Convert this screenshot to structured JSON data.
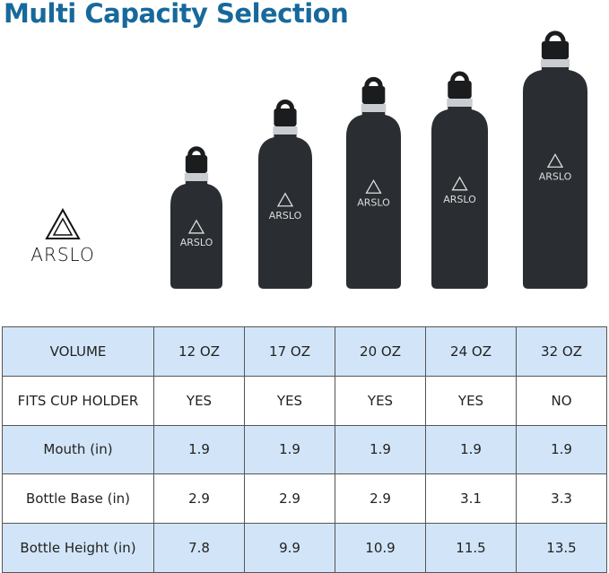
{
  "title": "Multi Capacity Selection",
  "brand": "ARSLO",
  "bottle_label": "ARSLO",
  "colors": {
    "title": "#17699b",
    "row_highlight": "#d2e5f8",
    "bottle": "#2a2d31"
  },
  "table": {
    "rows": [
      {
        "label": "VOLUME",
        "values": [
          "12 OZ",
          "17 OZ",
          "20 OZ",
          "24 OZ",
          "32 OZ"
        ]
      },
      {
        "label": "FITS CUP HOLDER",
        "values": [
          "YES",
          "YES",
          "YES",
          "YES",
          "NO"
        ]
      },
      {
        "label": "Mouth (in)",
        "values": [
          "1.9",
          "1.9",
          "1.9",
          "1.9",
          "1.9"
        ]
      },
      {
        "label": "Bottle Base (in)",
        "values": [
          "2.9",
          "2.9",
          "2.9",
          "3.1",
          "3.3"
        ]
      },
      {
        "label": "Bottle Height (in)",
        "values": [
          "7.8",
          "9.9",
          "10.9",
          "11.5",
          "13.5"
        ]
      }
    ]
  }
}
